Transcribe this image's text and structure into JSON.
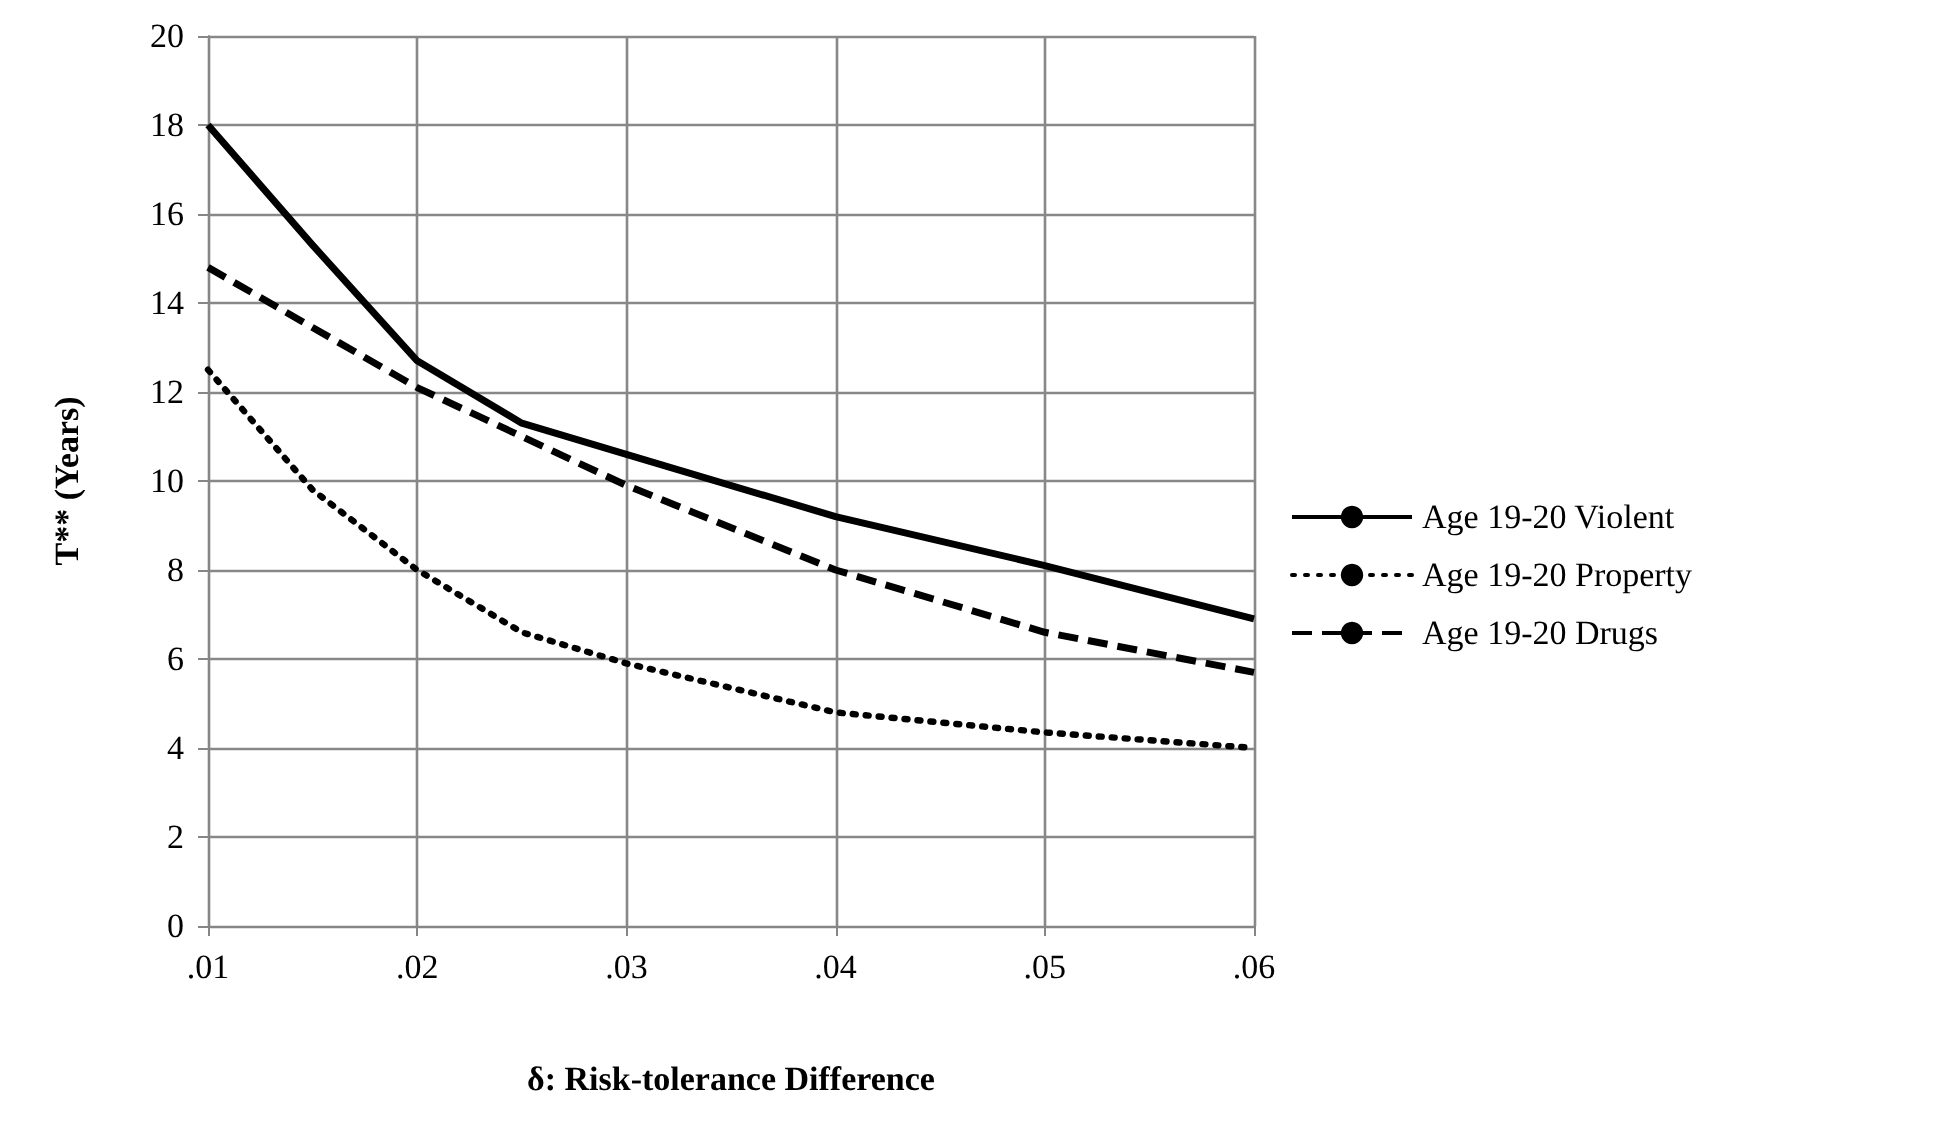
{
  "chart_data": {
    "type": "line",
    "xlabel": "δ: Risk-tolerance Difference",
    "ylabel": "T** (Years)",
    "xlim": [
      0.01,
      0.06
    ],
    "xticks": [
      {
        "value": 0.01,
        "label": ".01"
      },
      {
        "value": 0.02,
        "label": ".02"
      },
      {
        "value": 0.03,
        "label": ".03"
      },
      {
        "value": 0.04,
        "label": ".04"
      },
      {
        "value": 0.05,
        "label": ".05"
      },
      {
        "value": 0.06,
        "label": ".06"
      }
    ],
    "ylim": [
      0,
      20
    ],
    "yticks": [
      0,
      2,
      4,
      6,
      8,
      10,
      12,
      14,
      16,
      18,
      20
    ],
    "grid": true,
    "legend": "right",
    "marker": "none",
    "series": [
      {
        "name": "Age 19-20 Violent",
        "color": "#000000",
        "line_style": "solid",
        "x": [
          0.01,
          0.015,
          0.02,
          0.025,
          0.03,
          0.04,
          0.05,
          0.06
        ],
        "values": [
          18,
          15.3,
          12.7,
          11.3,
          10.6,
          9.2,
          8.1,
          6.9
        ]
      },
      {
        "name": "Age 19-20 Property",
        "color": "#000000",
        "line_style": "dotted",
        "x": [
          0.01,
          0.015,
          0.02,
          0.025,
          0.03,
          0.04,
          0.05,
          0.06
        ],
        "values": [
          12.5,
          9.8,
          8.0,
          6.6,
          5.9,
          4.8,
          4.35,
          4.0
        ]
      },
      {
        "name": "Age 19-20 Drugs",
        "color": "#000000",
        "line_style": "dashed",
        "x": [
          0.01,
          0.02,
          0.03,
          0.04,
          0.05,
          0.06
        ],
        "values": [
          14.8,
          12.1,
          9.9,
          8.0,
          6.6,
          5.7
        ]
      }
    ]
  }
}
